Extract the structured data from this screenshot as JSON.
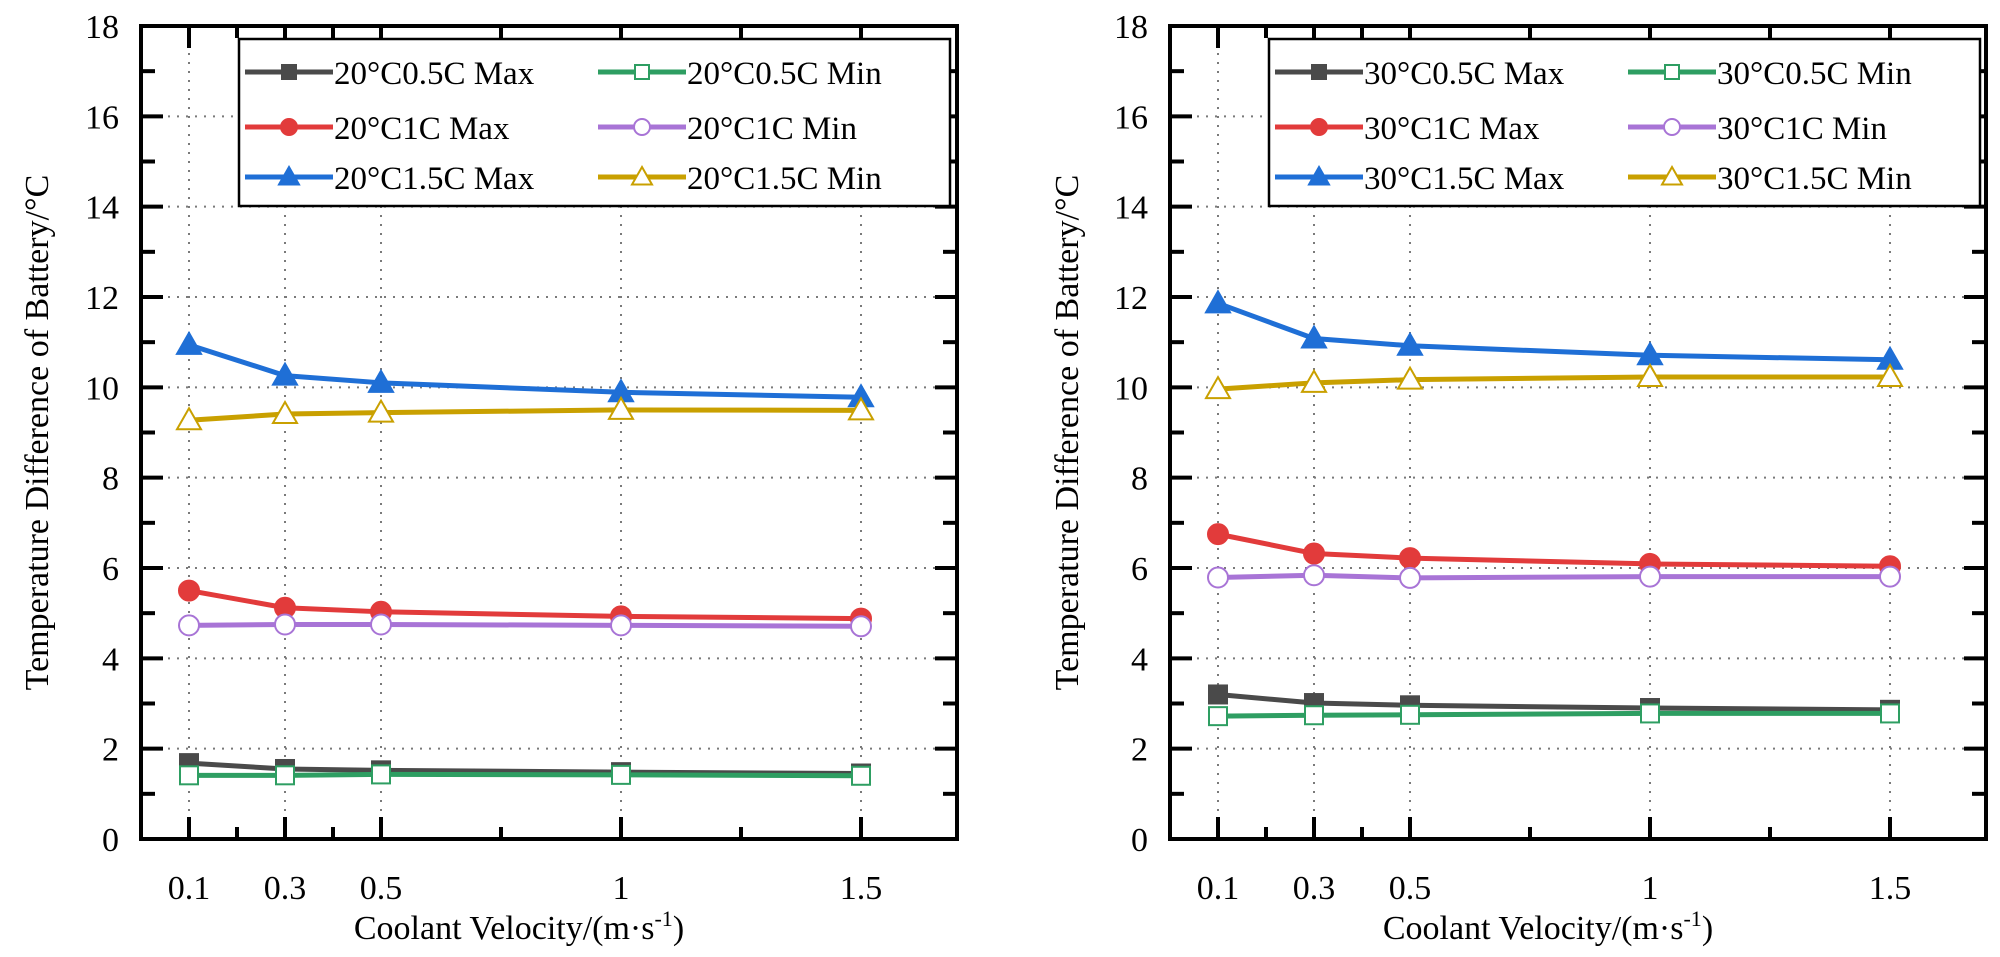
{
  "chart_data": [
    {
      "type": "line",
      "title": "",
      "xlabel": "Coolant Velocity/(m·s",
      "xlabel_sup": "-1",
      "xlabel_close": ")",
      "ylabel": "Temperature Difference of Battery/°C",
      "x": [
        0.1,
        0.3,
        0.5,
        1,
        1.5
      ],
      "xlim": [
        0,
        1.7
      ],
      "ylim": [
        0,
        18
      ],
      "x_ticks": [
        "0.1",
        "0.3",
        "0.5",
        "1",
        "1.5"
      ],
      "x_minor_ticks": [
        0.2,
        0.4,
        0.75,
        1.25
      ],
      "y_ticks": [
        "0",
        "2",
        "4",
        "6",
        "8",
        "10",
        "12",
        "14",
        "16",
        "18"
      ],
      "grid": true,
      "legend_position": "top-right",
      "series": [
        {
          "name": "20°C0.5C Max",
          "color": "#4a4a4a",
          "marker": "square",
          "filled": true,
          "values": [
            1.68,
            1.55,
            1.52,
            1.48,
            1.45
          ]
        },
        {
          "name": "20°C0.5C Min",
          "color": "#2e9e62",
          "marker": "square",
          "filled": false,
          "values": [
            1.41,
            1.41,
            1.43,
            1.42,
            1.4
          ]
        },
        {
          "name": "20°C1C Max",
          "color": "#e23b3b",
          "marker": "circle",
          "filled": true,
          "values": [
            5.5,
            5.12,
            5.03,
            4.93,
            4.88
          ]
        },
        {
          "name": "20°C1C Min",
          "color": "#a874d6",
          "marker": "circle",
          "filled": false,
          "values": [
            4.73,
            4.75,
            4.75,
            4.73,
            4.71
          ]
        },
        {
          "name": "20°C1.5C Max",
          "color": "#1f6fd6",
          "marker": "triangle",
          "filled": true,
          "values": [
            10.94,
            10.26,
            10.1,
            9.89,
            9.78
          ]
        },
        {
          "name": "20°C1.5C Min",
          "color": "#c9a000",
          "marker": "triangle",
          "filled": false,
          "values": [
            9.27,
            9.41,
            9.44,
            9.5,
            9.49
          ]
        }
      ]
    },
    {
      "type": "line",
      "title": "",
      "xlabel": "Coolant Velocity/(m·s",
      "xlabel_sup": "-1",
      "xlabel_close": ")",
      "ylabel": "Temperature Difference of Battery/°C",
      "x": [
        0.1,
        0.3,
        0.5,
        1,
        1.5
      ],
      "xlim": [
        0,
        1.7
      ],
      "ylim": [
        0,
        18
      ],
      "x_ticks": [
        "0.1",
        "0.3",
        "0.5",
        "1",
        "1.5"
      ],
      "x_minor_ticks": [
        0.2,
        0.4,
        0.75,
        1.25
      ],
      "y_ticks": [
        "0",
        "2",
        "4",
        "6",
        "8",
        "10",
        "12",
        "14",
        "16",
        "18"
      ],
      "grid": true,
      "legend_position": "top-right",
      "series": [
        {
          "name": "30°C0.5C Max",
          "color": "#4a4a4a",
          "marker": "square",
          "filled": true,
          "values": [
            3.2,
            3.01,
            2.96,
            2.9,
            2.86
          ]
        },
        {
          "name": "30°C0.5C Min",
          "color": "#2e9e62",
          "marker": "square",
          "filled": false,
          "values": [
            2.72,
            2.74,
            2.75,
            2.78,
            2.78
          ]
        },
        {
          "name": "30°C1C Max",
          "color": "#e23b3b",
          "marker": "circle",
          "filled": true,
          "values": [
            6.75,
            6.32,
            6.22,
            6.09,
            6.04
          ]
        },
        {
          "name": "30°C1C Min",
          "color": "#a874d6",
          "marker": "circle",
          "filled": false,
          "values": [
            5.79,
            5.84,
            5.78,
            5.81,
            5.81
          ]
        },
        {
          "name": "30°C1.5C Max",
          "color": "#1f6fd6",
          "marker": "triangle",
          "filled": true,
          "values": [
            11.86,
            11.08,
            10.92,
            10.71,
            10.61
          ]
        },
        {
          "name": "30°C1.5C Min",
          "color": "#c9a000",
          "marker": "triangle",
          "filled": false,
          "values": [
            9.96,
            10.1,
            10.17,
            10.23,
            10.23
          ]
        }
      ]
    }
  ]
}
